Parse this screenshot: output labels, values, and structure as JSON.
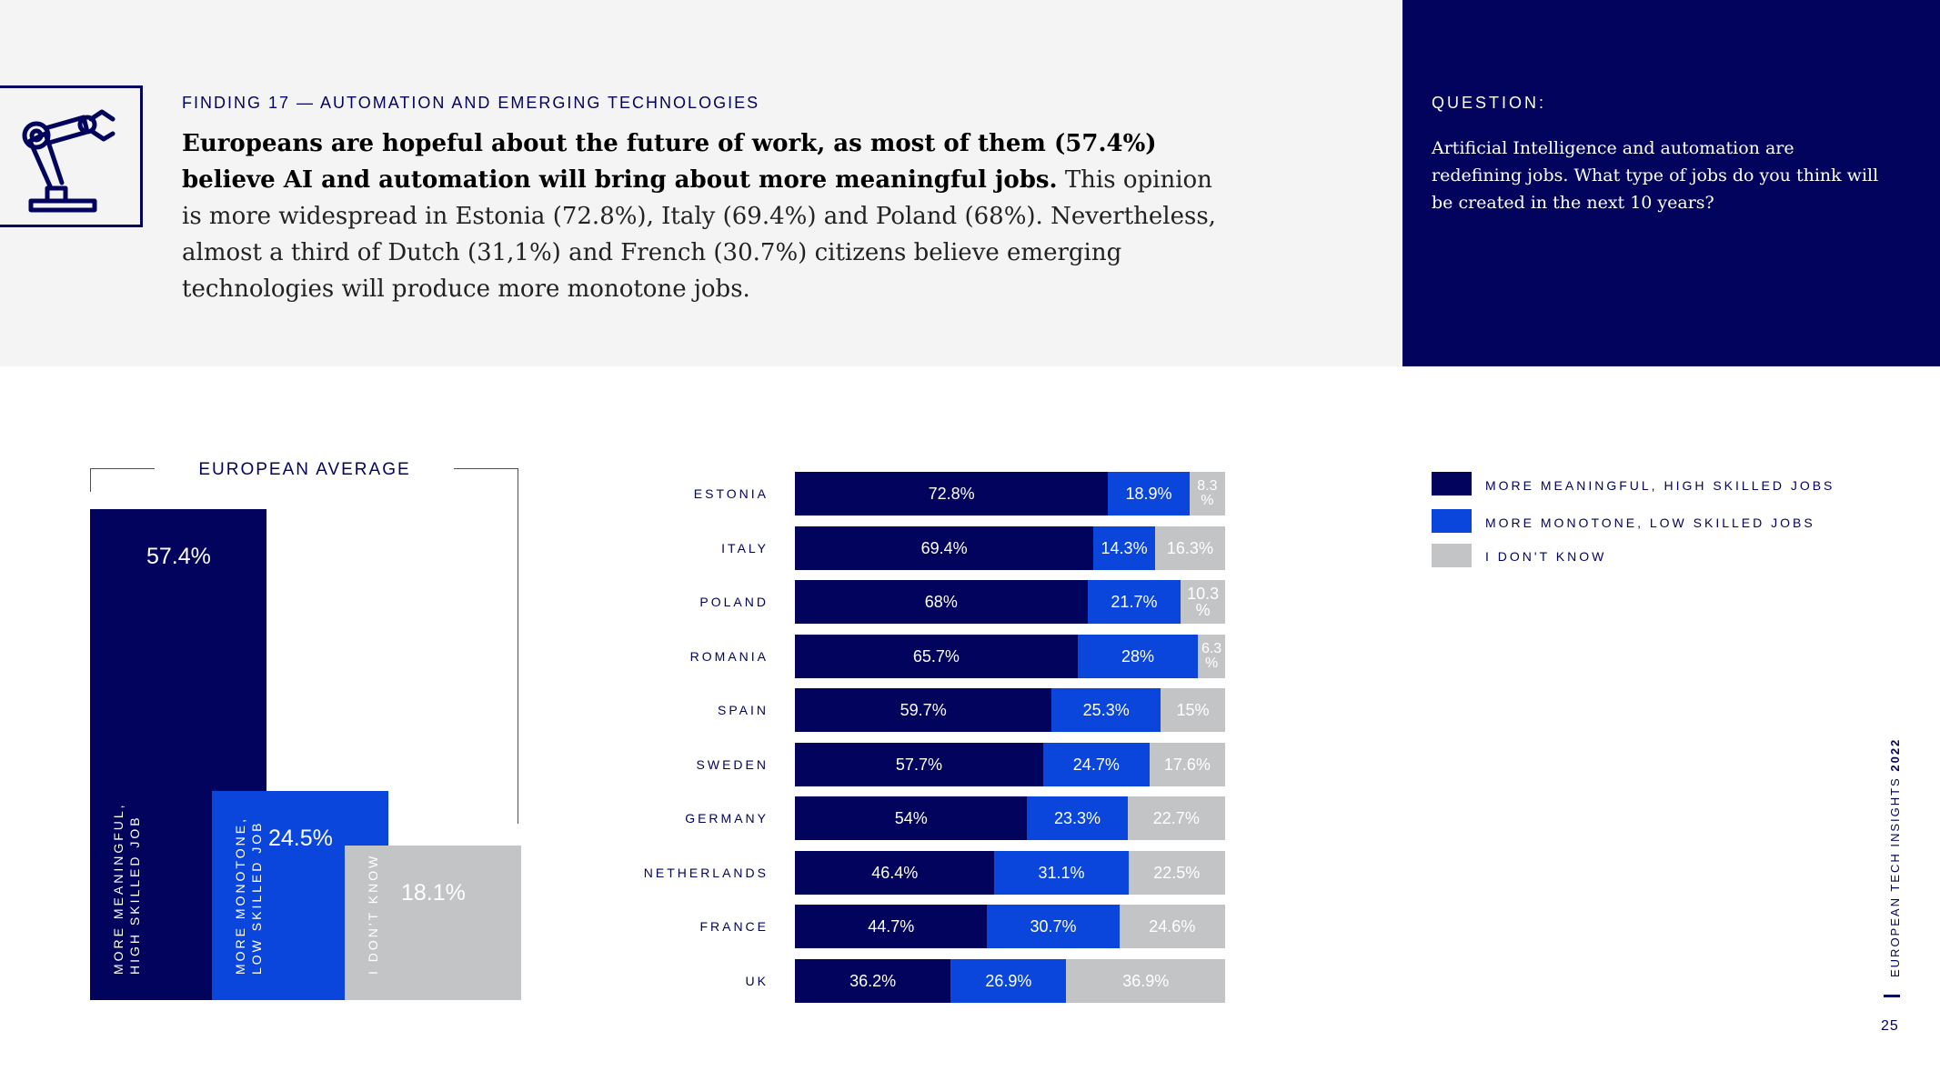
{
  "finding": {
    "label": "FINDING 17 — AUTOMATION AND EMERGING TECHNOLOGIES",
    "bold": "Europeans are hopeful about the future of work, as most of them (57.4%) believe AI and automation will bring about more meaningful jobs.",
    "rest": " This opinion is more widespread in Estonia (72.8%), Italy (69.4%) and Poland (68%). Nevertheless, almost a third of Dutch (31,1%) and French (30.7%) citizens believe emerging technologies will produce more monotone jobs."
  },
  "question": {
    "label": "QUESTION:",
    "text": "Artificial Intelligence and automation are redefining jobs. What type of jobs do you think will be created in the next 10 years?"
  },
  "icon": "robot-arm-icon",
  "colors": {
    "navy": "#02035c",
    "blue": "#0a45dc",
    "grey": "#c3c4c6"
  },
  "chart_data": [
    {
      "type": "bar",
      "title": "EUROPEAN AVERAGE",
      "categories": [
        [
          "MORE MEANINGFUL,",
          "HIGH SKILLED JOB"
        ],
        [
          "MORE MONOTONE,",
          "LOW SKILLED JOB"
        ],
        [
          "I DON'T KNOW"
        ]
      ],
      "values": [
        57.4,
        24.5,
        18.1
      ],
      "labels": [
        "57.4%",
        "24.5%",
        "18.1%"
      ]
    },
    {
      "type": "bar",
      "stacked": true,
      "orientation": "horizontal",
      "categories": [
        "ESTONIA",
        "ITALY",
        "POLAND",
        "ROMANIA",
        "SPAIN",
        "SWEDEN",
        "GERMANY",
        "NETHERLANDS",
        "FRANCE",
        "UK"
      ],
      "series": [
        {
          "name": "MORE MEANINGFUL, HIGH SKILLED JOBS",
          "values": [
            72.8,
            69.4,
            68,
            65.7,
            59.7,
            57.7,
            54,
            46.4,
            44.7,
            36.2
          ],
          "labels": [
            "72.8%",
            "69.4%",
            "68%",
            "65.7%",
            "59.7%",
            "57.7%",
            "54%",
            "46.4%",
            "44.7%",
            "36.2%"
          ]
        },
        {
          "name": "MORE MONOTONE, LOW SKILLED JOBS",
          "values": [
            18.9,
            14.3,
            21.7,
            28,
            25.3,
            24.7,
            23.3,
            31.1,
            30.7,
            26.9
          ],
          "labels": [
            "18.9%",
            "14.3%",
            "21.7%",
            "28%",
            "25.3%",
            "24.7%",
            "23.3%",
            "31.1%",
            "30.7%",
            "26.9%"
          ]
        },
        {
          "name": "I DON'T KNOW",
          "values": [
            8.3,
            16.3,
            10.3,
            6.3,
            15,
            17.6,
            22.7,
            22.5,
            24.6,
            36.9
          ],
          "labels": [
            "8.3 %",
            "16.3%",
            "10.3 %",
            "6.3 %",
            "15%",
            "17.6%",
            "22.7%",
            "22.5%",
            "24.6%",
            "36.9%"
          ]
        }
      ],
      "legend": "top-right"
    }
  ],
  "footer": {
    "side_text": "EUROPEAN TECH INSIGHTS",
    "side_year": "2022",
    "page_number": "25"
  }
}
